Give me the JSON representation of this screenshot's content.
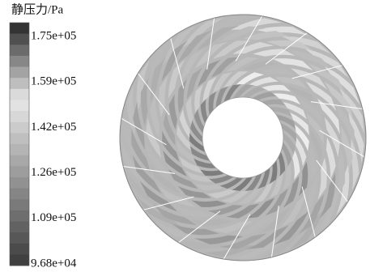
{
  "legend": {
    "title": "静压力/Pa",
    "ticks": [
      "1.75e+05",
      "1.59e+05",
      "1.42e+05",
      "1.26e+05",
      "1.09e+05",
      "9.68e+04"
    ]
  }
}
